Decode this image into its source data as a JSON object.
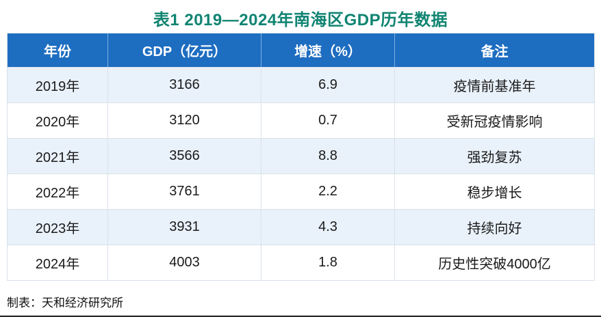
{
  "title": "表1  2019—2024年南海区GDP历年数据",
  "table": {
    "headers": [
      "年份",
      "GDP（亿元）",
      "增速（%）",
      "备注"
    ],
    "rows": [
      [
        "2019年",
        "3166",
        "6.9",
        "疫情前基准年"
      ],
      [
        "2020年",
        "3120",
        "0.7",
        "受新冠疫情影响"
      ],
      [
        "2021年",
        "3566",
        "8.8",
        "强劲复苏"
      ],
      [
        "2022年",
        "3761",
        "2.2",
        "稳步增长"
      ],
      [
        "2023年",
        "3931",
        "4.3",
        "持续向好"
      ],
      [
        "2024年",
        "4003",
        "1.8",
        "历史性突破4000亿"
      ]
    ]
  },
  "footer": {
    "credit": "制表：天和经济研究所"
  },
  "colors": {
    "title_text": "#108472",
    "header_bg": "#1D6DC1",
    "header_text": "#FFFFFF",
    "row_alt_bg": "#E9F1FA",
    "row_bg": "#FFFFFF",
    "border": "#D9E1EA",
    "bottom_rule": "#1A1A1A"
  },
  "chart_data": {
    "type": "table",
    "title": "表1 2019—2024年南海区GDP历年数据",
    "columns": [
      "年份",
      "GDP（亿元）",
      "增速（%）",
      "备注"
    ],
    "years": [
      2019,
      2020,
      2021,
      2022,
      2023,
      2024
    ],
    "series": [
      {
        "name": "GDP（亿元）",
        "values": [
          3166,
          3120,
          3566,
          3761,
          3931,
          4003
        ]
      },
      {
        "name": "增速（%）",
        "values": [
          6.9,
          0.7,
          8.8,
          2.2,
          4.3,
          1.8
        ]
      }
    ],
    "notes": [
      "疫情前基准年",
      "受新冠疫情影响",
      "强劲复苏",
      "稳步增长",
      "持续向好",
      "历史性突破4000亿"
    ],
    "source_credit": "制表：天和经济研究所"
  }
}
